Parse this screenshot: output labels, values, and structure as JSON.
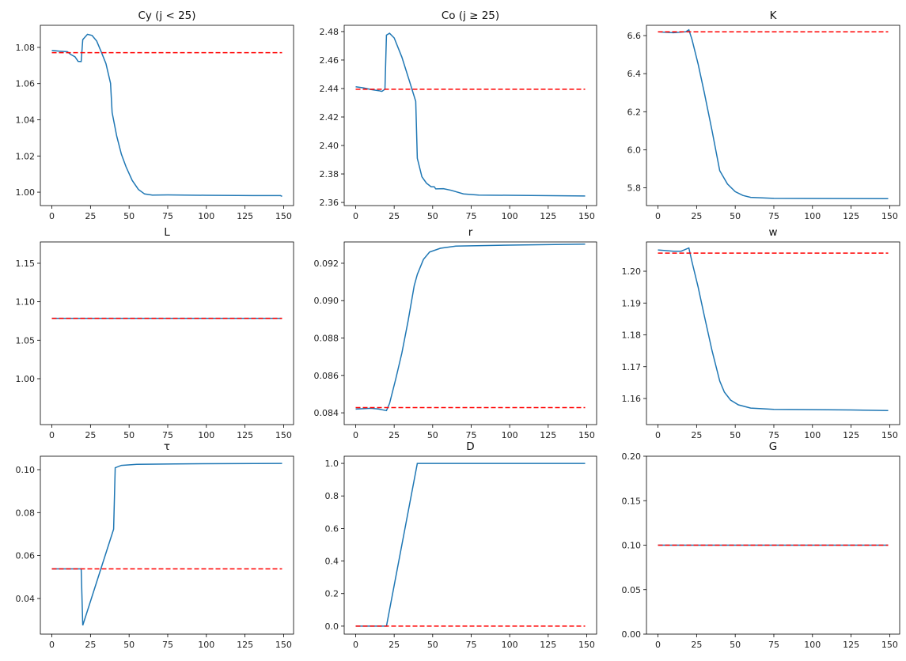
{
  "chart_data": [
    {
      "type": "line",
      "title": "Cy (j < 25)",
      "xlim": [
        -7.45,
        156.45
      ],
      "ylim": [
        0.9926,
        1.0922
      ],
      "xticks": [
        0,
        25,
        50,
        75,
        100,
        125,
        150
      ],
      "yticks": [
        "1.00",
        "1.02",
        "1.04",
        "1.06",
        "1.08"
      ],
      "series": [
        {
          "style": "solid",
          "color": "#1f77b4",
          "x": [
            0,
            5,
            10,
            12,
            15,
            17,
            19,
            20,
            23,
            26,
            29,
            32,
            35,
            38,
            39,
            42,
            45,
            48,
            52,
            56,
            60,
            65,
            75,
            100,
            130,
            148,
            149
          ],
          "y": [
            1.0783,
            1.0779,
            1.0776,
            1.0762,
            1.0748,
            1.0723,
            1.0722,
            1.0843,
            1.0872,
            1.0866,
            1.0835,
            1.0775,
            1.071,
            1.0602,
            1.044,
            1.031,
            1.021,
            1.014,
            1.0065,
            1.0015,
            0.999,
            0.9984,
            0.9985,
            0.9983,
            0.9981,
            0.9981,
            0.9977
          ]
        },
        {
          "style": "dashed",
          "color": "#ff0000",
          "x": [
            0,
            149
          ],
          "y": [
            1.0771,
            1.0771
          ]
        }
      ]
    },
    {
      "type": "line",
      "title": "Co (j  ≥  25)",
      "xlim": [
        -7.45,
        156.45
      ],
      "ylim": [
        2.3578,
        2.4844
      ],
      "xticks": [
        0,
        25,
        50,
        75,
        100,
        125,
        150
      ],
      "yticks": [
        "2.36",
        "2.38",
        "2.40",
        "2.42",
        "2.44",
        "2.46",
        "2.48"
      ],
      "series": [
        {
          "style": "solid",
          "color": "#1f77b4",
          "x": [
            0,
            5,
            10,
            15,
            17,
            19,
            20,
            22,
            25,
            30,
            35,
            39,
            40,
            43,
            46,
            49,
            51,
            52,
            57,
            62,
            70,
            80,
            100,
            149
          ],
          "y": [
            2.4412,
            2.4405,
            2.4393,
            2.4385,
            2.438,
            2.4395,
            2.4775,
            2.4788,
            2.4755,
            2.462,
            2.445,
            2.431,
            2.391,
            2.378,
            2.3735,
            2.371,
            2.371,
            2.3695,
            2.3697,
            2.3685,
            2.366,
            2.3652,
            2.365,
            2.3645
          ]
        },
        {
          "style": "dashed",
          "color": "#ff0000",
          "x": [
            0,
            149
          ],
          "y": [
            2.4395,
            2.4395
          ]
        }
      ]
    },
    {
      "type": "line",
      "title": "K",
      "xlim": [
        -7.45,
        156.45
      ],
      "ylim": [
        5.707,
        6.654
      ],
      "xticks": [
        0,
        25,
        50,
        75,
        100,
        125,
        150
      ],
      "yticks": [
        "5.8",
        "6.0",
        "6.2",
        "6.4",
        "6.6"
      ],
      "series": [
        {
          "style": "solid",
          "color": "#1f77b4",
          "x": [
            0,
            10,
            18,
            20,
            22,
            26,
            30,
            35,
            40,
            45,
            50,
            55,
            60,
            75,
            149
          ],
          "y": [
            6.62,
            6.615,
            6.62,
            6.63,
            6.58,
            6.45,
            6.3,
            6.1,
            5.89,
            5.82,
            5.78,
            5.76,
            5.75,
            5.745,
            5.743
          ]
        },
        {
          "style": "dashed",
          "color": "#ff0000",
          "x": [
            0,
            149
          ],
          "y": [
            6.62,
            6.62
          ]
        }
      ]
    },
    {
      "type": "line",
      "title": "L",
      "xlim": [
        -7.45,
        156.45
      ],
      "ylim": [
        0.9404,
        1.1777
      ],
      "xticks": [
        0,
        25,
        50,
        75,
        100,
        125,
        150
      ],
      "yticks": [
        "1.00",
        "1.05",
        "1.10",
        "1.15"
      ],
      "series": [
        {
          "style": "solid",
          "color": "#1f77b4",
          "x": [
            0,
            149
          ],
          "y": [
            1.0785,
            1.0785
          ]
        },
        {
          "style": "dashed",
          "color": "#ff0000",
          "x": [
            0,
            149
          ],
          "y": [
            1.0785,
            1.0785
          ]
        }
      ]
    },
    {
      "type": "line",
      "title": "r",
      "xlim": [
        -7.45,
        156.45
      ],
      "ylim": [
        0.08337,
        0.09314
      ],
      "xticks": [
        0,
        25,
        50,
        75,
        100,
        125,
        150
      ],
      "yticks": [
        "0.084",
        "0.086",
        "0.088",
        "0.090",
        "0.092"
      ],
      "series": [
        {
          "style": "solid",
          "color": "#1f77b4",
          "x": [
            0,
            10,
            15,
            20,
            22,
            26,
            30,
            34,
            38,
            40,
            44,
            48,
            55,
            65,
            100,
            149
          ],
          "y": [
            0.0842,
            0.08424,
            0.0842,
            0.08412,
            0.0845,
            0.0858,
            0.0872,
            0.0889,
            0.0908,
            0.0914,
            0.0922,
            0.0926,
            0.0928,
            0.09292,
            0.09297,
            0.09302
          ]
        },
        {
          "style": "dashed",
          "color": "#ff0000",
          "x": [
            0,
            149
          ],
          "y": [
            0.08428,
            0.08428
          ]
        }
      ]
    },
    {
      "type": "line",
      "title": "w",
      "xlim": [
        -7.45,
        156.45
      ],
      "ylim": [
        1.1518,
        1.2092
      ],
      "xticks": [
        0,
        25,
        50,
        75,
        100,
        125,
        150
      ],
      "yticks": [
        "1.16",
        "1.17",
        "1.18",
        "1.19",
        "1.20"
      ],
      "series": [
        {
          "style": "solid",
          "color": "#1f77b4",
          "x": [
            0,
            10,
            15,
            20,
            22,
            26,
            30,
            35,
            40,
            43,
            47,
            52,
            60,
            75,
            125,
            149
          ],
          "y": [
            1.2067,
            1.2063,
            1.2063,
            1.2073,
            1.203,
            1.195,
            1.186,
            1.175,
            1.1655,
            1.162,
            1.1595,
            1.158,
            1.157,
            1.1566,
            1.1564,
            1.1562
          ]
        },
        {
          "style": "dashed",
          "color": "#ff0000",
          "x": [
            0,
            149
          ],
          "y": [
            1.2057,
            1.2057
          ]
        }
      ]
    },
    {
      "type": "line",
      "title": "τ",
      "xlim": [
        -7.45,
        156.45
      ],
      "ylim": [
        0.0234,
        0.10626
      ],
      "xticks": [
        0,
        25,
        50,
        75,
        100,
        125,
        150
      ],
      "yticks": [
        "0.04",
        "0.06",
        "0.08",
        "0.10"
      ],
      "series": [
        {
          "style": "solid",
          "color": "#1f77b4",
          "x": [
            0,
            19,
            20,
            40,
            41,
            45,
            55,
            80,
            149
          ],
          "y": [
            0.0538,
            0.0538,
            0.0275,
            0.0723,
            0.1009,
            0.102,
            0.1025,
            0.1027,
            0.1029
          ]
        },
        {
          "style": "dashed",
          "color": "#ff0000",
          "x": [
            0,
            149
          ],
          "y": [
            0.0538,
            0.0538
          ]
        }
      ]
    },
    {
      "type": "line",
      "title": "D",
      "xlim": [
        -7.45,
        156.45
      ],
      "ylim": [
        -0.049,
        1.044
      ],
      "xticks": [
        0,
        25,
        50,
        75,
        100,
        125,
        150
      ],
      "yticks": [
        "0.0",
        "0.2",
        "0.4",
        "0.6",
        "0.8",
        "1.0"
      ],
      "series": [
        {
          "style": "solid",
          "color": "#1f77b4",
          "x": [
            0,
            20,
            40,
            149
          ],
          "y": [
            0,
            0,
            1,
            1
          ]
        },
        {
          "style": "dashed",
          "color": "#ff0000",
          "x": [
            0,
            149
          ],
          "y": [
            0,
            0
          ]
        }
      ]
    },
    {
      "type": "line",
      "title": "G",
      "xlim": [
        -7.45,
        156.45
      ],
      "ylim": [
        0,
        0.2
      ],
      "xticks": [
        0,
        25,
        50,
        75,
        100,
        125,
        150
      ],
      "yticks": [
        "0.00",
        "0.05",
        "0.10",
        "0.15",
        "0.20"
      ],
      "series": [
        {
          "style": "solid",
          "color": "#1f77b4",
          "x": [
            0,
            149
          ],
          "y": [
            0.1,
            0.1
          ]
        },
        {
          "style": "dashed",
          "color": "#ff0000",
          "x": [
            0,
            149
          ],
          "y": [
            0.1,
            0.1
          ]
        }
      ]
    }
  ]
}
